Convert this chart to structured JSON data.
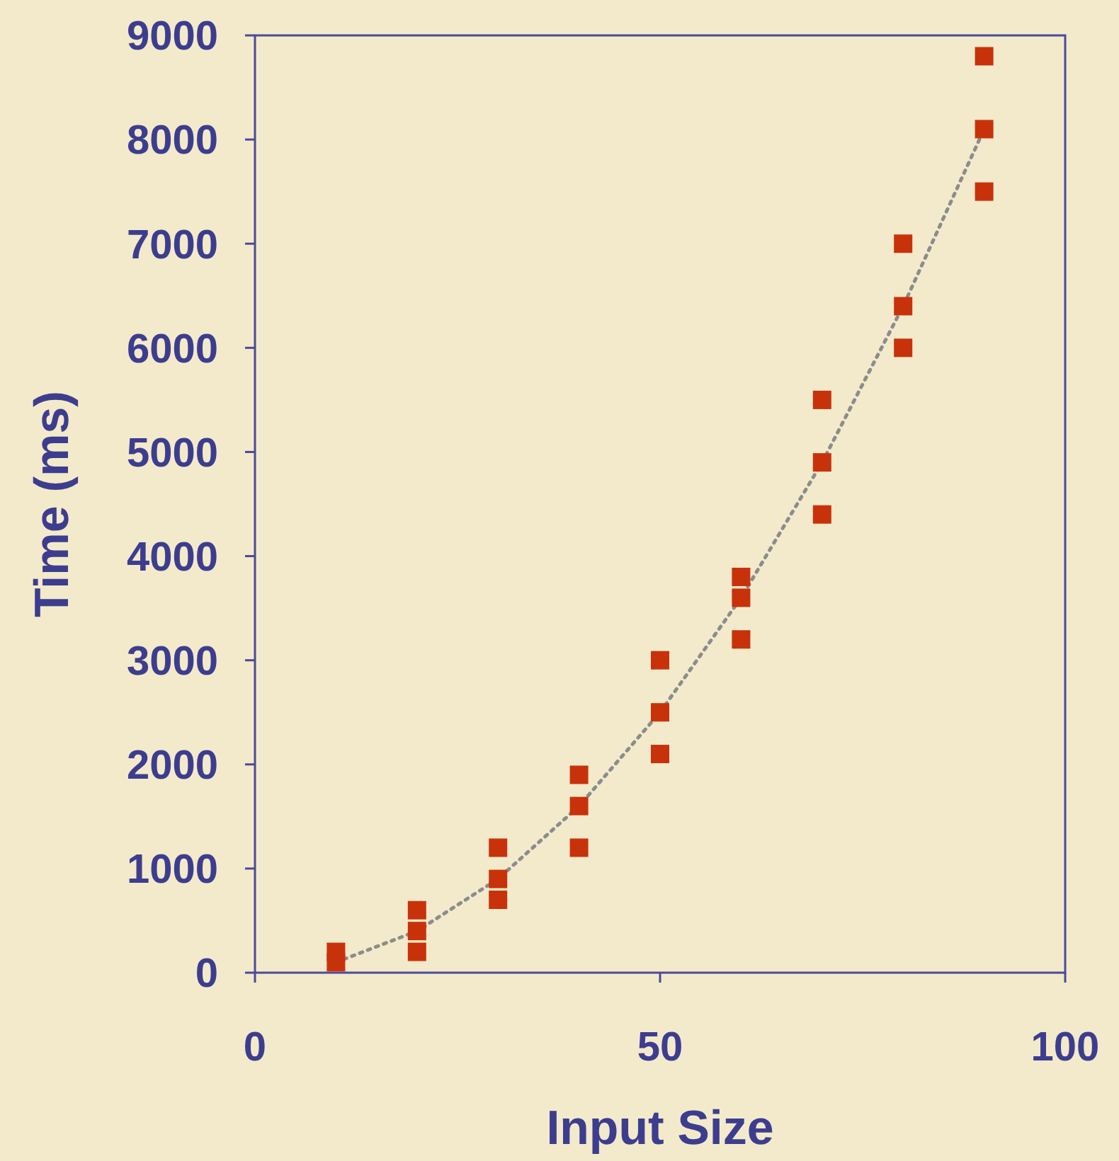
{
  "chart_data": {
    "type": "scatter",
    "xlabel": "Input Size",
    "ylabel": "Time (ms)",
    "xlim": [
      0,
      100
    ],
    "ylim": [
      0,
      9000
    ],
    "xticks": [
      0,
      50,
      100
    ],
    "yticks": [
      0,
      1000,
      2000,
      3000,
      4000,
      5000,
      6000,
      7000,
      8000,
      9000
    ],
    "grid": false,
    "series": [
      {
        "color": "#c8320a",
        "marker": "square",
        "x": [
          10,
          10,
          20,
          20,
          20,
          30,
          30,
          30,
          40,
          40,
          40,
          50,
          50,
          50,
          60,
          60,
          60,
          70,
          70,
          70,
          80,
          80,
          80,
          90,
          90,
          90
        ],
        "values": [
          200,
          100,
          600,
          400,
          200,
          1200,
          900,
          700,
          1900,
          1600,
          1200,
          3000,
          2500,
          2100,
          3800,
          3600,
          3200,
          5500,
          4900,
          4400,
          7000,
          6400,
          6000,
          8800,
          8100,
          7500
        ]
      },
      {
        "type": "line",
        "color": "#8c8c8c",
        "marker": "none",
        "line_style": "dotted",
        "x": [
          10,
          20,
          30,
          40,
          50,
          60,
          70,
          80,
          90
        ],
        "values": [
          100,
          400,
          900,
          1600,
          2500,
          3600,
          4900,
          6400,
          8100
        ]
      }
    ]
  }
}
